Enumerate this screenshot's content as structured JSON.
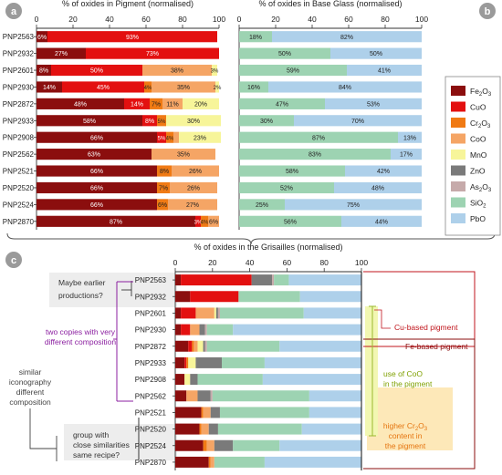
{
  "panel_labels": {
    "a": "a",
    "b": "b",
    "c": "c"
  },
  "components": [
    {
      "key": "Fe2O3",
      "label": "Fe",
      "sub": "2",
      "label2": "O",
      "sub2": "3",
      "color": "#8b0e0e"
    },
    {
      "key": "CuO",
      "label": "CuO",
      "color": "#e31010"
    },
    {
      "key": "Cr2O3",
      "label": "Cr",
      "sub": "2",
      "label2": "O",
      "sub2": "3",
      "color": "#f07a14"
    },
    {
      "key": "CoO",
      "label": "CoO",
      "color": "#f5a565"
    },
    {
      "key": "MnO",
      "label": "MnO",
      "color": "#f7f59a"
    },
    {
      "key": "ZnO",
      "label": "ZnO",
      "color": "#7a7a7a"
    },
    {
      "key": "As2O3",
      "label": "As",
      "sub": "2",
      "label2": "O",
      "sub2": "3",
      "color": "#c6aaaa"
    },
    {
      "key": "SiO2",
      "label": "SiO",
      "sub": "2",
      "label2": "",
      "sub2": "",
      "color": "#9dd3b2"
    },
    {
      "key": "PbO",
      "label": "PbO",
      "color": "#aed0ea"
    }
  ],
  "chart_data": [
    {
      "type": "bar",
      "orientation": "horizontal",
      "stacked": true,
      "title": "% of oxides in Pigment (normalised)",
      "xlim": [
        0,
        100
      ],
      "xticks": [
        0,
        20,
        40,
        60,
        80,
        100
      ],
      "categories": [
        "PNP2563",
        "PNP2932",
        "PNP2601",
        "PNP2930",
        "PNP2872",
        "PNP2933",
        "PNP2908",
        "PNP2562",
        "PNP2521",
        "PNP2520",
        "PNP2524",
        "PNP2870"
      ],
      "rows": [
        [
          {
            "c": "Fe2O3",
            "v": 6,
            "t": "6%"
          },
          {
            "c": "CuO",
            "v": 93,
            "t": "93%"
          }
        ],
        [
          {
            "c": "Fe2O3",
            "v": 27,
            "t": "27%"
          },
          {
            "c": "CuO",
            "v": 73,
            "t": "73%"
          }
        ],
        [
          {
            "c": "Fe2O3",
            "v": 8,
            "t": "8%"
          },
          {
            "c": "CuO",
            "v": 50,
            "t": "50%"
          },
          {
            "c": "CoO",
            "v": 38,
            "t": "38%"
          },
          {
            "c": "MnO",
            "v": 3,
            "t": "3%"
          }
        ],
        [
          {
            "c": "Fe2O3",
            "v": 14,
            "t": "14%"
          },
          {
            "c": "CuO",
            "v": 45,
            "t": "45%"
          },
          {
            "c": "Cr2O3",
            "v": 4,
            "t": "4%"
          },
          {
            "c": "CoO",
            "v": 35,
            "t": "35%"
          },
          {
            "c": "MnO",
            "v": 2,
            "t": "2%"
          }
        ],
        [
          {
            "c": "Fe2O3",
            "v": 48,
            "t": "48%"
          },
          {
            "c": "CuO",
            "v": 14,
            "t": "14%"
          },
          {
            "c": "Cr2O3",
            "v": 7,
            "t": "7%"
          },
          {
            "c": "CoO",
            "v": 11,
            "t": "11%"
          },
          {
            "c": "MnO",
            "v": 20,
            "t": "20%"
          }
        ],
        [
          {
            "c": "Fe2O3",
            "v": 58,
            "t": "58%"
          },
          {
            "c": "CuO",
            "v": 8,
            "t": "8%"
          },
          {
            "c": "Cr2O3",
            "v": 5,
            "t": "5%"
          },
          {
            "c": "MnO",
            "v": 30,
            "t": "30%"
          }
        ],
        [
          {
            "c": "Fe2O3",
            "v": 66,
            "t": "66%"
          },
          {
            "c": "CuO",
            "v": 5,
            "t": "5%"
          },
          {
            "c": "Cr2O3",
            "v": 4,
            "t": "4%"
          },
          {
            "c": "CoO",
            "v": 3,
            "t": ""
          },
          {
            "c": "MnO",
            "v": 23,
            "t": "23%"
          }
        ],
        [
          {
            "c": "Fe2O3",
            "v": 63,
            "t": "63%"
          },
          {
            "c": "CoO",
            "v": 35,
            "t": "35%"
          }
        ],
        [
          {
            "c": "Fe2O3",
            "v": 66,
            "t": "66%"
          },
          {
            "c": "Cr2O3",
            "v": 8,
            "t": "8%"
          },
          {
            "c": "CoO",
            "v": 26,
            "t": "26%"
          }
        ],
        [
          {
            "c": "Fe2O3",
            "v": 66,
            "t": "66%"
          },
          {
            "c": "Cr2O3",
            "v": 7,
            "t": "7%"
          },
          {
            "c": "CoO",
            "v": 26,
            "t": "26%"
          }
        ],
        [
          {
            "c": "Fe2O3",
            "v": 66,
            "t": "66%"
          },
          {
            "c": "Cr2O3",
            "v": 6,
            "t": "6%"
          },
          {
            "c": "CoO",
            "v": 27,
            "t": "27%"
          }
        ],
        [
          {
            "c": "Fe2O3",
            "v": 87,
            "t": "87%"
          },
          {
            "c": "CuO",
            "v": 3,
            "t": "3%"
          },
          {
            "c": "Cr2O3",
            "v": 4,
            "t": "4%"
          },
          {
            "c": "CoO",
            "v": 6,
            "t": "6%"
          }
        ]
      ]
    },
    {
      "type": "bar",
      "orientation": "horizontal",
      "stacked": true,
      "title": "% of oxides in Base Glass (normalised)",
      "xlim": [
        0,
        100
      ],
      "xticks": [
        0,
        20,
        40,
        60,
        80,
        100
      ],
      "categories": [
        "PNP2563",
        "PNP2932",
        "PNP2601",
        "PNP2930",
        "PNP2872",
        "PNP2933",
        "PNP2908",
        "PNP2562",
        "PNP2521",
        "PNP2520",
        "PNP2524",
        "PNP2870"
      ],
      "rows": [
        [
          {
            "c": "SiO2",
            "v": 18,
            "t": "18%"
          },
          {
            "c": "PbO",
            "v": 82,
            "t": "82%"
          }
        ],
        [
          {
            "c": "SiO2",
            "v": 50,
            "t": "50%"
          },
          {
            "c": "PbO",
            "v": 50,
            "t": "50%"
          }
        ],
        [
          {
            "c": "SiO2",
            "v": 59,
            "t": "59%"
          },
          {
            "c": "PbO",
            "v": 41,
            "t": "41%"
          }
        ],
        [
          {
            "c": "SiO2",
            "v": 16,
            "t": "16%"
          },
          {
            "c": "PbO",
            "v": 84,
            "t": "84%"
          }
        ],
        [
          {
            "c": "SiO2",
            "v": 47,
            "t": "47%"
          },
          {
            "c": "PbO",
            "v": 53,
            "t": "53%"
          }
        ],
        [
          {
            "c": "SiO2",
            "v": 30,
            "t": "30%"
          },
          {
            "c": "PbO",
            "v": 70,
            "t": "70%"
          }
        ],
        [
          {
            "c": "SiO2",
            "v": 87,
            "t": "87%"
          },
          {
            "c": "PbO",
            "v": 13,
            "t": "13%"
          }
        ],
        [
          {
            "c": "SiO2",
            "v": 83,
            "t": "83%"
          },
          {
            "c": "PbO",
            "v": 17,
            "t": "17%"
          }
        ],
        [
          {
            "c": "SiO2",
            "v": 58,
            "t": "58%"
          },
          {
            "c": "PbO",
            "v": 42,
            "t": "42%"
          }
        ],
        [
          {
            "c": "SiO2",
            "v": 52,
            "t": "52%"
          },
          {
            "c": "PbO",
            "v": 48,
            "t": "48%"
          }
        ],
        [
          {
            "c": "SiO2",
            "v": 25,
            "t": "25%"
          },
          {
            "c": "PbO",
            "v": 75,
            "t": "75%"
          }
        ],
        [
          {
            "c": "SiO2",
            "v": 56,
            "t": "56%"
          },
          {
            "c": "PbO",
            "v": 44,
            "t": "44%"
          }
        ]
      ]
    },
    {
      "type": "bar",
      "orientation": "horizontal",
      "stacked": true,
      "title": "% of oxides in the Grisailles (normalised)",
      "xlim": [
        0,
        100
      ],
      "xticks": [
        0,
        20,
        40,
        60,
        80,
        100
      ],
      "categories": [
        "PNP2563",
        "PNP2932",
        "PNP2601",
        "PNP2930",
        "PNP2872",
        "PNP2933",
        "PNP2908",
        "PNP2562",
        "PNP2521",
        "PNP2520",
        "PNP2524",
        "PNP2870"
      ],
      "rows": [
        [
          {
            "c": "Fe2O3",
            "v": 3
          },
          {
            "c": "CuO",
            "v": 38
          },
          {
            "c": "ZnO",
            "v": 11
          },
          {
            "c": "As2O3",
            "v": 1
          },
          {
            "c": "SiO2",
            "v": 8
          },
          {
            "c": "PbO",
            "v": 39
          }
        ],
        [
          {
            "c": "Fe2O3",
            "v": 8
          },
          {
            "c": "CuO",
            "v": 26
          },
          {
            "c": "SiO2",
            "v": 33
          },
          {
            "c": "PbO",
            "v": 33
          }
        ],
        [
          {
            "c": "Fe2O3",
            "v": 3
          },
          {
            "c": "CuO",
            "v": 8
          },
          {
            "c": "CoO",
            "v": 10
          },
          {
            "c": "MnO",
            "v": 1
          },
          {
            "c": "ZnO",
            "v": 1
          },
          {
            "c": "As2O3",
            "v": 1
          },
          {
            "c": "SiO2",
            "v": 45
          },
          {
            "c": "PbO",
            "v": 31
          }
        ],
        [
          {
            "c": "Fe2O3",
            "v": 3
          },
          {
            "c": "CuO",
            "v": 5
          },
          {
            "c": "CoO",
            "v": 5
          },
          {
            "c": "ZnO",
            "v": 3
          },
          {
            "c": "As2O3",
            "v": 1
          },
          {
            "c": "SiO2",
            "v": 14
          },
          {
            "c": "PbO",
            "v": 69
          }
        ],
        [
          {
            "c": "Fe2O3",
            "v": 7
          },
          {
            "c": "CuO",
            "v": 2
          },
          {
            "c": "Cr2O3",
            "v": 1
          },
          {
            "c": "CoO",
            "v": 2
          },
          {
            "c": "MnO",
            "v": 3
          },
          {
            "c": "ZnO",
            "v": 1
          },
          {
            "c": "As2O3",
            "v": 1
          },
          {
            "c": "SiO2",
            "v": 39
          },
          {
            "c": "PbO",
            "v": 44
          }
        ],
        [
          {
            "c": "Fe2O3",
            "v": 5
          },
          {
            "c": "CuO",
            "v": 1
          },
          {
            "c": "Cr2O3",
            "v": 1
          },
          {
            "c": "MnO",
            "v": 4
          },
          {
            "c": "ZnO",
            "v": 14
          },
          {
            "c": "SiO2",
            "v": 23
          },
          {
            "c": "PbO",
            "v": 52
          }
        ],
        [
          {
            "c": "Fe2O3",
            "v": 5
          },
          {
            "c": "MnO",
            "v": 3
          },
          {
            "c": "ZnO",
            "v": 4
          },
          {
            "c": "SiO2",
            "v": 35
          },
          {
            "c": "PbO",
            "v": 53
          }
        ],
        [
          {
            "c": "Fe2O3",
            "v": 6
          },
          {
            "c": "CoO",
            "v": 6
          },
          {
            "c": "ZnO",
            "v": 7
          },
          {
            "c": "As2O3",
            "v": 1
          },
          {
            "c": "SiO2",
            "v": 52
          },
          {
            "c": "PbO",
            "v": 28
          }
        ],
        [
          {
            "c": "Fe2O3",
            "v": 14
          },
          {
            "c": "Cr2O3",
            "v": 1
          },
          {
            "c": "CoO",
            "v": 4
          },
          {
            "c": "ZnO",
            "v": 5
          },
          {
            "c": "SiO2",
            "v": 48
          },
          {
            "c": "PbO",
            "v": 28
          }
        ],
        [
          {
            "c": "Fe2O3",
            "v": 13
          },
          {
            "c": "Cr2O3",
            "v": 1
          },
          {
            "c": "CoO",
            "v": 4
          },
          {
            "c": "ZnO",
            "v": 5
          },
          {
            "c": "SiO2",
            "v": 45
          },
          {
            "c": "PbO",
            "v": 32
          }
        ],
        [
          {
            "c": "Fe2O3",
            "v": 15
          },
          {
            "c": "Cr2O3",
            "v": 2
          },
          {
            "c": "CoO",
            "v": 4
          },
          {
            "c": "ZnO",
            "v": 10
          },
          {
            "c": "SiO2",
            "v": 25
          },
          {
            "c": "PbO",
            "v": 44
          }
        ],
        [
          {
            "c": "Fe2O3",
            "v": 18
          },
          {
            "c": "Cr2O3",
            "v": 1
          },
          {
            "c": "CoO",
            "v": 2
          },
          {
            "c": "SiO2",
            "v": 27
          },
          {
            "c": "PbO",
            "v": 52
          }
        ]
      ]
    }
  ],
  "annotations": {
    "maybe_earlier": [
      "Maybe earlier",
      "productions?"
    ],
    "two_copies": [
      "two copies with very",
      "different composition"
    ],
    "similar_iconography": [
      "similar",
      "iconography",
      "different",
      "composition"
    ],
    "group_similar": [
      "group with",
      "close similarities",
      "same recipe?"
    ],
    "cu_pigment": "Cu-based pigment",
    "fe_pigment": "Fe-based pigment",
    "coo_use": [
      "use of CoO",
      "in the pigment"
    ],
    "cr_higher": [
      "higher Cr",
      "2",
      "O",
      "3",
      "content in",
      "the pigment"
    ]
  }
}
